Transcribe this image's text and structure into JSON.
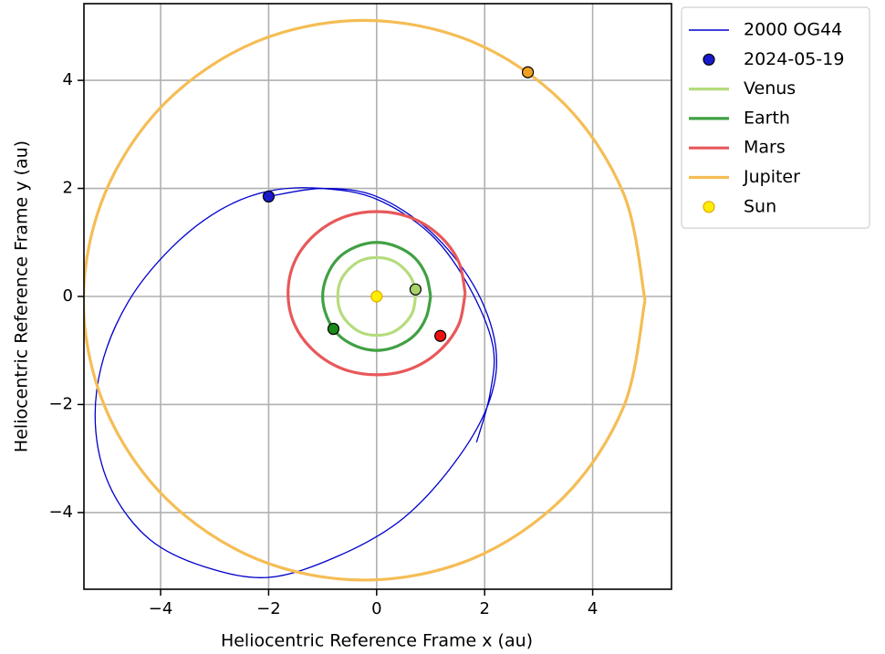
{
  "chart_data": {
    "type": "line",
    "xlabel": "Heliocentric Reference Frame x (au)",
    "ylabel": "Heliocentric Reference Frame y (au)",
    "xlim": [
      -5.42,
      5.46
    ],
    "ylim": [
      -5.42,
      5.42
    ],
    "xticks": [
      {
        "value": -4,
        "label": "−4"
      },
      {
        "value": -2,
        "label": "−2"
      },
      0,
      2,
      4
    ],
    "yticks": [
      {
        "value": -4,
        "label": "−4"
      },
      {
        "value": -2,
        "label": "−2"
      },
      0,
      2,
      4
    ],
    "grid": true,
    "legend": "outside upper right",
    "series": [
      {
        "name": "2000 OG44",
        "kind": "line",
        "color": "#0000cd",
        "x": [
          -2.0,
          -1.0,
          0.0,
          1.0,
          1.8,
          2.2,
          2.1,
          1.5,
          0.5,
          -0.7,
          -2.0,
          -3.2,
          -4.2,
          -4.9,
          -5.2,
          -5.1,
          -4.6,
          -3.8,
          -2.9,
          -2.0,
          -1.0,
          0.0,
          1.0,
          1.7,
          2.15,
          2.1,
          1.85
        ],
        "y": [
          1.85,
          2.0,
          1.85,
          1.2,
          0.2,
          -0.9,
          -1.9,
          -3.0,
          -4.1,
          -4.8,
          -5.2,
          -5.0,
          -4.5,
          -3.6,
          -2.5,
          -1.3,
          -0.1,
          0.9,
          1.6,
          1.95,
          2.0,
          1.8,
          1.15,
          0.2,
          -0.9,
          -1.8,
          -2.7
        ]
      },
      {
        "name": "2024-05-19",
        "kind": "scatter",
        "color": "#1a1acc",
        "x": [
          -2.0
        ],
        "y": [
          1.85
        ]
      },
      {
        "name": "Venus",
        "kind": "line",
        "color": "#b5dc7d",
        "x": [
          0.72,
          0.67,
          0.51,
          0.28,
          0,
          -0.28,
          -0.51,
          -0.67,
          -0.72,
          -0.67,
          -0.51,
          -0.28,
          0,
          0.28,
          0.51,
          0.67,
          0.72
        ],
        "y": [
          0,
          0.28,
          0.51,
          0.67,
          0.72,
          0.67,
          0.51,
          0.28,
          0,
          -0.28,
          -0.51,
          -0.67,
          -0.72,
          -0.67,
          -0.51,
          -0.28,
          0
        ],
        "position": {
          "x": 0.72,
          "y": 0.13,
          "color": "#a8d26a"
        }
      },
      {
        "name": "Earth",
        "kind": "line",
        "color": "#41a043",
        "x": [
          1,
          0.92,
          0.71,
          0.38,
          0,
          -0.38,
          -0.71,
          -0.92,
          -1,
          -0.92,
          -0.71,
          -0.38,
          0,
          0.38,
          0.71,
          0.92,
          1
        ],
        "y": [
          0,
          0.38,
          0.71,
          0.92,
          1,
          0.92,
          0.71,
          0.38,
          0,
          -0.38,
          -0.71,
          -0.92,
          -1,
          -0.92,
          -0.71,
          -0.38,
          0
        ],
        "position": {
          "x": -0.8,
          "y": -0.6,
          "color": "#1a8a1a"
        }
      },
      {
        "name": "Mars",
        "kind": "line",
        "color": "#e8585a",
        "x": [
          1.64,
          1.52,
          1.16,
          0.63,
          0,
          -0.63,
          -1.16,
          -1.52,
          -1.64,
          -1.52,
          -1.16,
          -0.63,
          0,
          0.63,
          1.16,
          1.52,
          1.64
        ],
        "y": [
          0.06,
          0.64,
          1.13,
          1.46,
          1.57,
          1.46,
          1.13,
          0.64,
          0.06,
          -0.52,
          -1.01,
          -1.34,
          -1.45,
          -1.34,
          -1.01,
          -0.52,
          0.06
        ],
        "position": {
          "x": 1.18,
          "y": -0.73,
          "color": "#ee1111"
        }
      },
      {
        "name": "Jupiter",
        "kind": "line",
        "color": "#f5bd55",
        "x": [
          4.97,
          4.57,
          3.45,
          1.76,
          -0.23,
          -2.22,
          -3.91,
          -5.03,
          -5.43,
          -5.03,
          -3.91,
          -2.22,
          -0.23,
          1.76,
          3.45,
          4.57,
          4.97
        ],
        "y": [
          -0.07,
          1.91,
          3.59,
          4.72,
          5.11,
          4.72,
          3.59,
          1.91,
          -0.07,
          -2.05,
          -3.73,
          -4.86,
          -5.25,
          -4.86,
          -3.73,
          -2.05,
          -0.07
        ],
        "position": {
          "x": 2.8,
          "y": 4.15,
          "color": "#f0a020"
        }
      },
      {
        "name": "Sun",
        "kind": "scatter",
        "color": "#ffee00",
        "x": [
          0
        ],
        "y": [
          0
        ]
      }
    ]
  }
}
